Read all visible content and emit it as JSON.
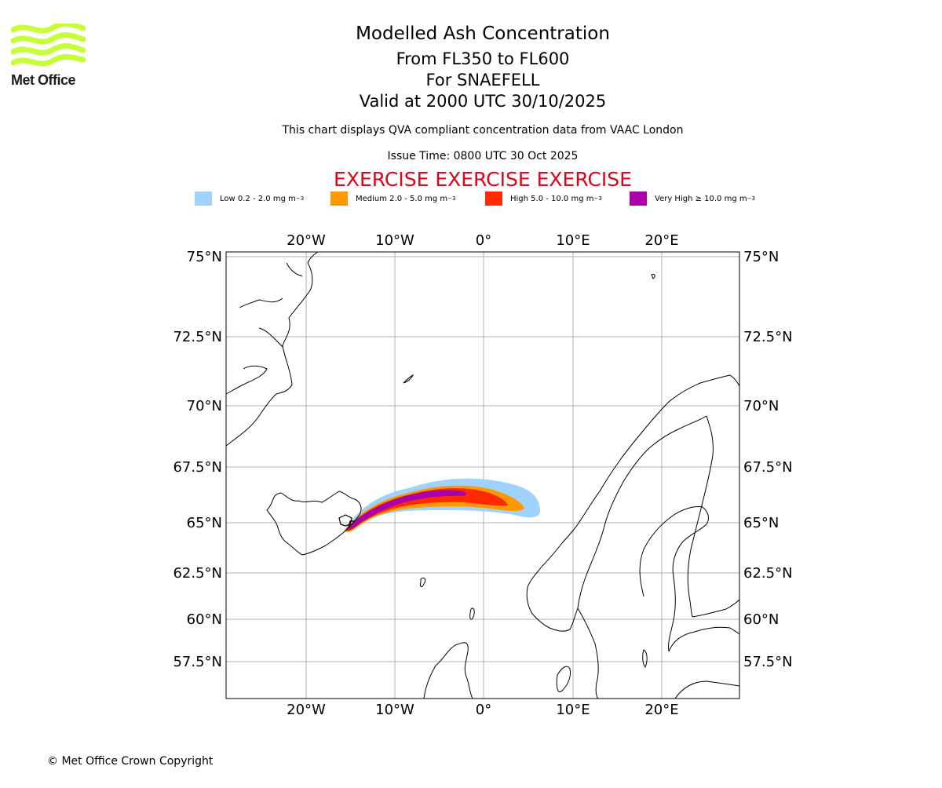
{
  "header": {
    "title": "Modelled Ash Concentration",
    "levels": "From FL350 to FL600",
    "volcano": "For SNAEFELL",
    "valid": "Valid at 2000 UTC 30/10/2025",
    "subtitle": "This chart displays QVA compliant concentration data from VAAC London",
    "issue_time": "Issue Time: 0800 UTC 30 Oct 2025",
    "exercise_banner": "EXERCISE EXERCISE EXERCISE"
  },
  "logo": {
    "text": "Met Office",
    "color": "#c6ff3a"
  },
  "legend": [
    {
      "label": "Low 0.2 - 2.0 mg m",
      "color": "#a0d2ff"
    },
    {
      "label": "Medium 2.0 - 5.0 mg m",
      "color": "#ff9900"
    },
    {
      "label": "High 5.0 - 10.0 mg m",
      "color": "#ff2a00"
    },
    {
      "label": "Very High  ≥  10.0 mg m",
      "color": "#aa00aa"
    }
  ],
  "legend_unit_exp": "−3",
  "map": {
    "lon_ticks": [
      "20°W",
      "10°W",
      "0°",
      "10°E",
      "20°E"
    ],
    "lat_ticks": [
      "75°N",
      "72.5°N",
      "70°N",
      "67.5°N",
      "65°N",
      "62.5°N",
      "60°N",
      "57.5°N"
    ],
    "grid_color": "#b0b0b0"
  },
  "footer": {
    "copyright": "© Met Office Crown Copyright"
  }
}
